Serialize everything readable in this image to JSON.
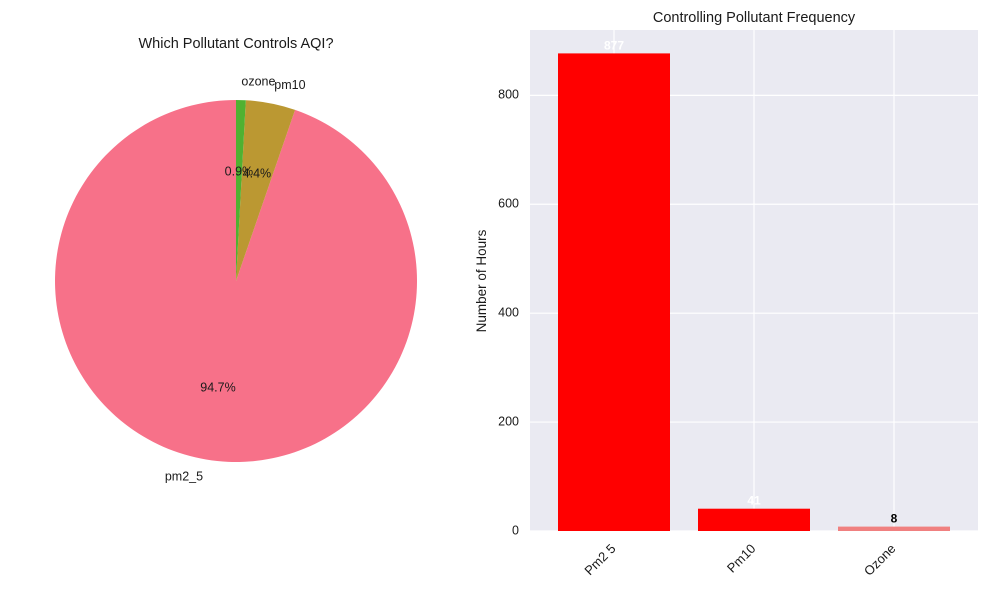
{
  "chart_data": [
    {
      "type": "pie",
      "title": "Which Pollutant Controls AQI?",
      "slices": [
        {
          "label": "pm2_5",
          "value": 877,
          "pct_label": "94.7%",
          "color": "#f77189"
        },
        {
          "label": "pm10",
          "value": 41,
          "pct_label": "4.4%",
          "color": "#bb9832"
        },
        {
          "label": "ozone",
          "value": 8,
          "pct_label": "0.9%",
          "color": "#50b131"
        }
      ],
      "start_angle_deg": 90,
      "direction": "counterclockwise"
    },
    {
      "type": "bar",
      "title": "Controlling Pollutant Frequency",
      "xlabel": "",
      "ylabel": "Number of Hours",
      "categories": [
        "Pm2 5",
        "Pm10",
        "Ozone"
      ],
      "values": [
        877,
        41,
        8
      ],
      "value_labels": [
        "877",
        "41",
        "8"
      ],
      "bar_colors": [
        "#ff0000",
        "#ff0000",
        "#f08080"
      ],
      "value_label_colors": [
        "#ffffff",
        "#ffffff",
        "#000000"
      ],
      "ylim": [
        0,
        920
      ],
      "yticks": [
        0,
        200,
        400,
        600,
        800
      ],
      "grid": true,
      "background": "#eaeaf2"
    }
  ]
}
